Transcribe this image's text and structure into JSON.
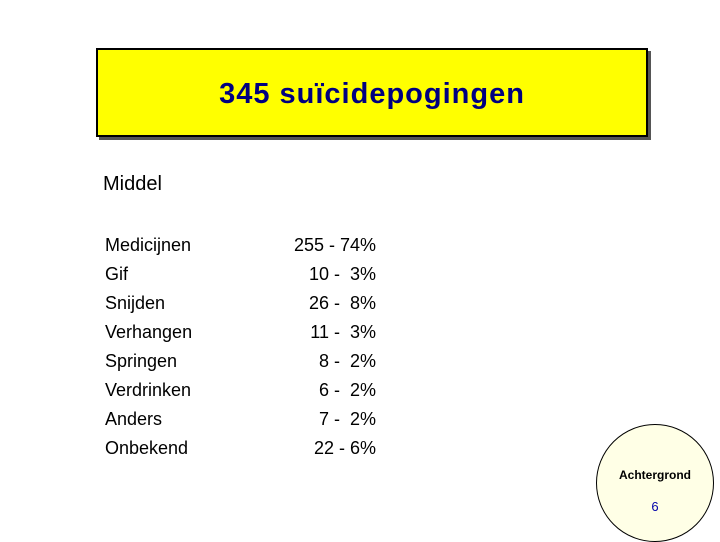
{
  "slide": {
    "title": "345 suïcidepogingen",
    "section_heading": "Middel",
    "rows": [
      {
        "label": "Medicijnen",
        "value": "255 - 74%"
      },
      {
        "label": "Gif",
        "value": "10 -  3%"
      },
      {
        "label": "Snijden",
        "value": "26 -  8%"
      },
      {
        "label": "Verhangen",
        "value": "11 -  3%"
      },
      {
        "label": "Springen",
        "value": "8 -  2%"
      },
      {
        "label": "Verdrinken",
        "value": "6 -  2%"
      },
      {
        "label": "Anders",
        "value": "7 -  2%"
      },
      {
        "label": "Onbekend",
        "value": "22 - 6%"
      }
    ]
  },
  "nav_badge": {
    "label": "Achtergrond",
    "page_number": "6"
  },
  "colors": {
    "title_background": "#ffff00",
    "title_text": "#000080",
    "badge_background": "#ffffe6",
    "page_number": "#0000aa"
  }
}
